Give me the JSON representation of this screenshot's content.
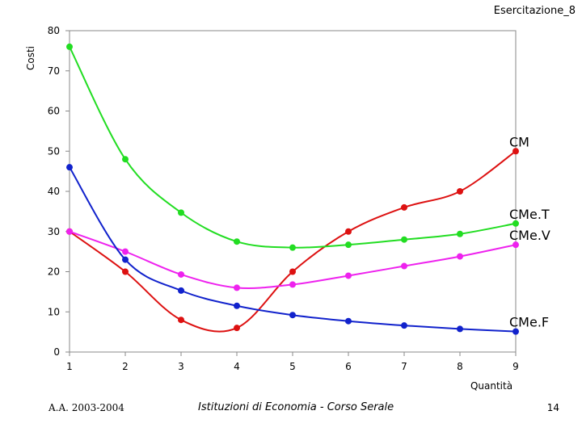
{
  "header": {
    "title": "Esercitazione_8"
  },
  "footer": {
    "left": "A.A. 2003-2004",
    "center": "Istituzioni di Economia  -  Corso Serale",
    "page": "14"
  },
  "chart_data": {
    "type": "line",
    "title": "",
    "xlabel": "Quantità",
    "ylabel": "Costi",
    "x": [
      1,
      2,
      3,
      4,
      5,
      6,
      7,
      8,
      9
    ],
    "xticks": [
      "1",
      "2",
      "3",
      "4",
      "5",
      "6",
      "7",
      "8",
      "9"
    ],
    "yticks": [
      "0",
      "10",
      "20",
      "30",
      "40",
      "50",
      "60",
      "70",
      "80"
    ],
    "xlim": [
      1,
      9
    ],
    "ylim": [
      0,
      80
    ],
    "grid": false,
    "series": [
      {
        "name": "CM",
        "color": "#dd1111",
        "values": [
          30,
          20,
          8,
          6,
          20,
          30,
          36,
          40,
          50
        ]
      },
      {
        "name": "CMe.T",
        "color": "#22dd22",
        "values": [
          76,
          48,
          34.7,
          27.5,
          26,
          26.7,
          28,
          29.4,
          32
        ]
      },
      {
        "name": "CMe.V",
        "color": "#ee22ee",
        "values": [
          30,
          25,
          19.3,
          16,
          16.8,
          19,
          21.4,
          23.8,
          26.7
        ]
      },
      {
        "name": "CMe.F",
        "color": "#1122cc",
        "values": [
          46,
          23,
          15.3,
          11.5,
          9.2,
          7.7,
          6.6,
          5.75,
          5.1
        ]
      }
    ]
  }
}
